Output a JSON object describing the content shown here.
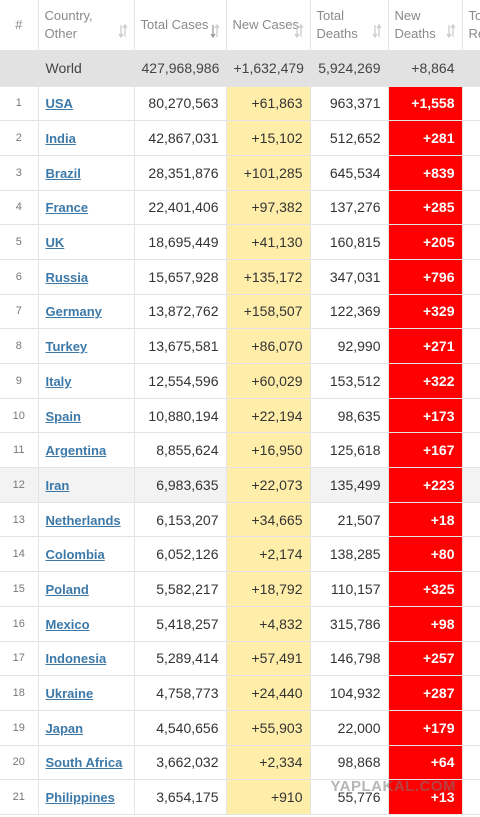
{
  "table": {
    "header": [
      "#",
      "Country, Other",
      "Total Cases",
      "New Cases",
      "Total Deaths",
      "New Deaths",
      "To Re"
    ],
    "world": [
      "World",
      "427,968,986",
      "+1,632,479",
      "5,924,269",
      "+8,864"
    ],
    "rows": [
      [
        "1",
        "USA",
        "80,270,563",
        "+61,863",
        "963,371",
        "+1,558"
      ],
      [
        "2",
        "India",
        "42,867,031",
        "+15,102",
        "512,652",
        "+281"
      ],
      [
        "3",
        "Brazil",
        "28,351,876",
        "+101,285",
        "645,534",
        "+839"
      ],
      [
        "4",
        "France",
        "22,401,406",
        "+97,382",
        "137,276",
        "+285"
      ],
      [
        "5",
        "UK",
        "18,695,449",
        "+41,130",
        "160,815",
        "+205"
      ],
      [
        "6",
        "Russia",
        "15,657,928",
        "+135,172",
        "347,031",
        "+796"
      ],
      [
        "7",
        "Germany",
        "13,872,762",
        "+158,507",
        "122,369",
        "+329"
      ],
      [
        "8",
        "Turkey",
        "13,675,581",
        "+86,070",
        "92,990",
        "+271"
      ],
      [
        "9",
        "Italy",
        "12,554,596",
        "+60,029",
        "153,512",
        "+322"
      ],
      [
        "10",
        "Spain",
        "10,880,194",
        "+22,194",
        "98,635",
        "+173"
      ],
      [
        "11",
        "Argentina",
        "8,855,624",
        "+16,950",
        "125,618",
        "+167"
      ],
      [
        "12",
        "Iran",
        "6,983,635",
        "+22,073",
        "135,499",
        "+223"
      ],
      [
        "13",
        "Netherlands",
        "6,153,207",
        "+34,665",
        "21,507",
        "+18"
      ],
      [
        "14",
        "Colombia",
        "6,052,126",
        "+2,174",
        "138,285",
        "+80"
      ],
      [
        "15",
        "Poland",
        "5,582,217",
        "+18,792",
        "110,157",
        "+325"
      ],
      [
        "16",
        "Mexico",
        "5,418,257",
        "+4,832",
        "315,786",
        "+98"
      ],
      [
        "17",
        "Indonesia",
        "5,289,414",
        "+57,491",
        "146,798",
        "+257"
      ],
      [
        "18",
        "Ukraine",
        "4,758,773",
        "+24,440",
        "104,932",
        "+287"
      ],
      [
        "19",
        "Japan",
        "4,540,656",
        "+55,903",
        "22,000",
        "+179"
      ],
      [
        "20",
        "South Africa",
        "3,662,032",
        "+2,334",
        "98,868",
        "+64"
      ],
      [
        "21",
        "Philippines",
        "3,654,175",
        "+910",
        "55,776",
        "+13"
      ]
    ]
  },
  "watermark": "YAPLAKAL.COM"
}
